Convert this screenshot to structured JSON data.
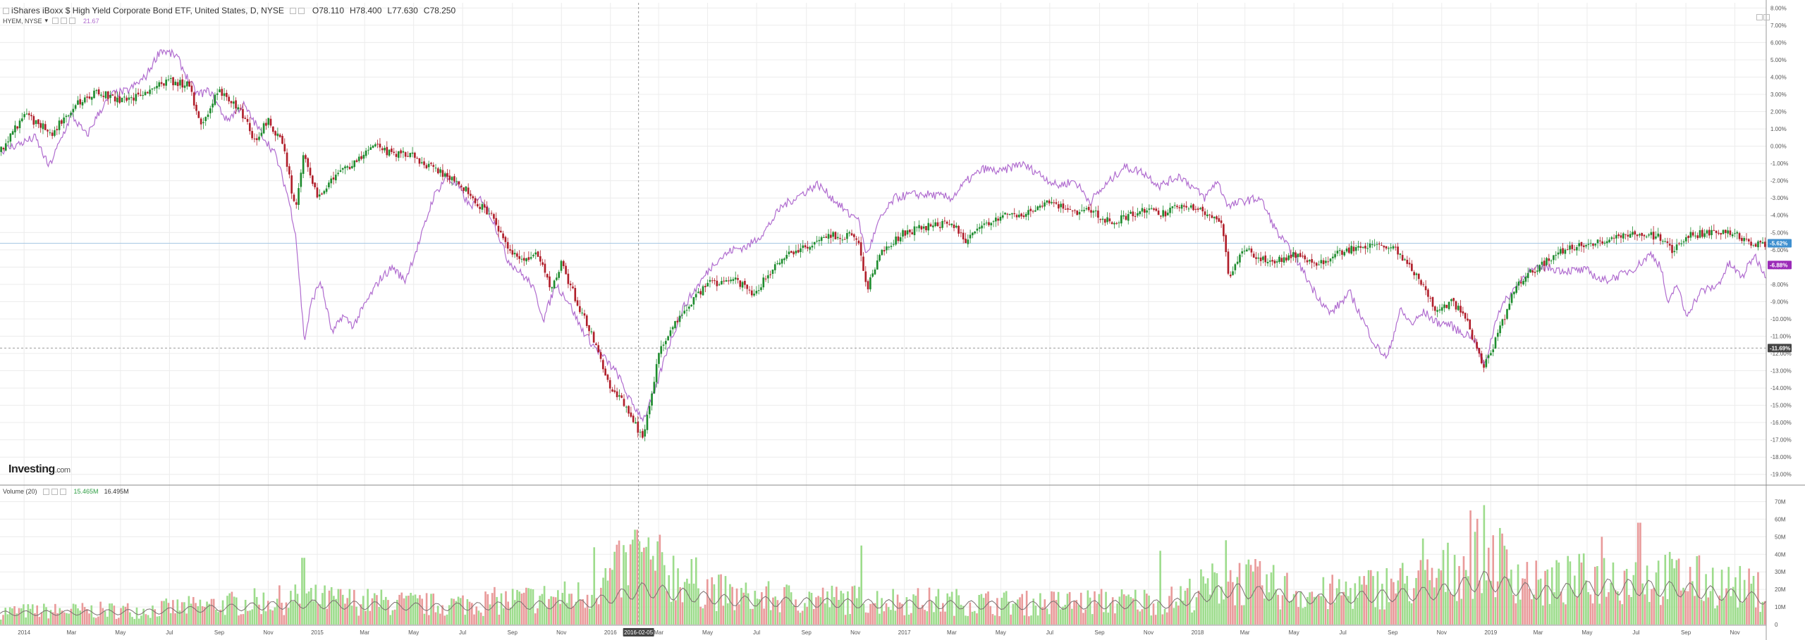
{
  "legend": {
    "title": "iShares iBoxx $ High Yield Corporate Bond ETF, United States, D, NYSE",
    "open": "O78.110",
    "high": "H78.400",
    "low": "L77.630",
    "close": "C78.250",
    "overlay_symbol": "HYEM, NYSE",
    "overlay_arrow": "▾",
    "overlay_value": "21.67",
    "volume_label": "Volume (20)",
    "volume_value": "15.465M",
    "volume_ma_value": "16.495M"
  },
  "logo": {
    "main": "Investing",
    "suffix": ".com"
  },
  "colors": {
    "up": "#1e8c2e",
    "down": "#b01e2a",
    "overlay": "#b06ccf",
    "vol_up": "#9ddc8c",
    "vol_down": "#e99a9a",
    "vol_ma": "#7a6f6f",
    "grid": "#ececec",
    "hline": "#a7c8e4",
    "badge_main": "#3e8fcf",
    "badge_overlay": "#9b2ab8",
    "badge_cursor": "#444444"
  },
  "chart_data": [
    {
      "type": "candlestick",
      "title": "iShares iBoxx $ High Yield Corporate Bond ETF, United States, D, NYSE",
      "y_scale": "percent change",
      "ylim": [
        -19.5,
        8.3
      ],
      "y_ticks": [
        "8.00%",
        "7.00%",
        "6.00%",
        "5.00%",
        "4.00%",
        "3.00%",
        "2.00%",
        "1.00%",
        "0.00%",
        "-1.00%",
        "-2.00%",
        "-3.00%",
        "-4.00%",
        "-5.00%",
        "-6.00%",
        "-7.00%",
        "-8.00%",
        "-9.00%",
        "-10.00%",
        "-11.00%",
        "-12.00%",
        "-13.00%",
        "-14.00%",
        "-15.00%",
        "-16.00%",
        "-17.00%",
        "-18.00%",
        "-19.00%"
      ],
      "x_range": [
        "2013-12-02",
        "2019-12-10"
      ],
      "x_ticks": [
        {
          "date": "2014-01-01",
          "label": "2014"
        },
        {
          "date": "2014-03-01",
          "label": "Mar"
        },
        {
          "date": "2014-05-01",
          "label": "May"
        },
        {
          "date": "2014-07-01",
          "label": "Jul"
        },
        {
          "date": "2014-09-01",
          "label": "Sep"
        },
        {
          "date": "2014-11-01",
          "label": "Nov"
        },
        {
          "date": "2015-01-01",
          "label": "2015"
        },
        {
          "date": "2015-03-01",
          "label": "Mar"
        },
        {
          "date": "2015-05-01",
          "label": "May"
        },
        {
          "date": "2015-07-01",
          "label": "Jul"
        },
        {
          "date": "2015-09-01",
          "label": "Sep"
        },
        {
          "date": "2015-11-01",
          "label": "Nov"
        },
        {
          "date": "2016-01-01",
          "label": "2016"
        },
        {
          "date": "2016-03-01",
          "label": "Mar"
        },
        {
          "date": "2016-05-01",
          "label": "May"
        },
        {
          "date": "2016-07-01",
          "label": "Jul"
        },
        {
          "date": "2016-09-01",
          "label": "Sep"
        },
        {
          "date": "2016-11-01",
          "label": "Nov"
        },
        {
          "date": "2017-01-01",
          "label": "2017"
        },
        {
          "date": "2017-03-01",
          "label": "Mar"
        },
        {
          "date": "2017-05-01",
          "label": "May"
        },
        {
          "date": "2017-07-01",
          "label": "Jul"
        },
        {
          "date": "2017-09-01",
          "label": "Sep"
        },
        {
          "date": "2017-11-01",
          "label": "Nov"
        },
        {
          "date": "2018-01-01",
          "label": "2018"
        },
        {
          "date": "2018-03-01",
          "label": "Mar"
        },
        {
          "date": "2018-05-01",
          "label": "May"
        },
        {
          "date": "2018-07-01",
          "label": "Jul"
        },
        {
          "date": "2018-09-01",
          "label": "Sep"
        },
        {
          "date": "2018-11-01",
          "label": "Nov"
        },
        {
          "date": "2019-01-01",
          "label": "2019"
        },
        {
          "date": "2019-03-01",
          "label": "Mar"
        },
        {
          "date": "2019-05-01",
          "label": "May"
        },
        {
          "date": "2019-07-01",
          "label": "Jul"
        },
        {
          "date": "2019-09-01",
          "label": "Sep"
        },
        {
          "date": "2019-11-01",
          "label": "Nov"
        }
      ],
      "series": [
        {
          "name": "iShares iBoxx $ High Yield Corporate Bond ETF",
          "style": "candles",
          "x": [
            "2013-12-02",
            "2014-01-01",
            "2014-02-05",
            "2014-03-01",
            "2014-04-01",
            "2014-05-01",
            "2014-06-01",
            "2014-07-01",
            "2014-07-25",
            "2014-08-10",
            "2014-09-01",
            "2014-10-01",
            "2014-10-15",
            "2014-11-01",
            "2014-11-20",
            "2014-12-05",
            "2014-12-15",
            "2015-01-01",
            "2015-01-15",
            "2015-02-01",
            "2015-03-01",
            "2015-03-15",
            "2015-04-01",
            "2015-05-01",
            "2015-06-01",
            "2015-07-01",
            "2015-07-20",
            "2015-08-10",
            "2015-08-25",
            "2015-09-15",
            "2015-10-01",
            "2015-10-20",
            "2015-11-01",
            "2015-11-20",
            "2015-12-14",
            "2016-01-01",
            "2016-01-20",
            "2016-02-11",
            "2016-03-01",
            "2016-04-01",
            "2016-05-01",
            "2016-06-01",
            "2016-06-27",
            "2016-07-15",
            "2016-08-01",
            "2016-09-01",
            "2016-10-01",
            "2016-11-03",
            "2016-11-15",
            "2016-12-01",
            "2017-01-01",
            "2017-02-01",
            "2017-03-01",
            "2017-03-20",
            "2017-04-01",
            "2017-05-01",
            "2017-06-01",
            "2017-07-01",
            "2017-08-01",
            "2017-08-20",
            "2017-09-15",
            "2017-11-01",
            "2017-11-15",
            "2017-12-15",
            "2018-01-15",
            "2018-02-01",
            "2018-02-09",
            "2018-03-01",
            "2018-04-01",
            "2018-05-01",
            "2018-06-01",
            "2018-07-01",
            "2018-08-01",
            "2018-09-01",
            "2018-10-01",
            "2018-10-25",
            "2018-11-15",
            "2018-12-01",
            "2018-12-24",
            "2019-01-15",
            "2019-02-01",
            "2019-03-01",
            "2019-04-01",
            "2019-05-01",
            "2019-06-01",
            "2019-07-01",
            "2019-08-01",
            "2019-08-15",
            "2019-09-01",
            "2019-10-01",
            "2019-11-01",
            "2019-11-25",
            "2019-12-10"
          ],
          "values": [
            -0.3,
            1.8,
            0.8,
            2.2,
            3.2,
            2.6,
            3.1,
            3.8,
            3.5,
            1.2,
            3.3,
            1.8,
            0.3,
            1.5,
            0.0,
            -3.8,
            -0.3,
            -3.0,
            -2.1,
            -1.5,
            -0.4,
            0.1,
            -0.4,
            -0.6,
            -1.5,
            -2.3,
            -3.3,
            -4.3,
            -5.8,
            -6.8,
            -6.0,
            -8.3,
            -6.8,
            -9.0,
            -11.5,
            -14.0,
            -15.0,
            -17.0,
            -12.0,
            -9.5,
            -8.0,
            -7.7,
            -8.5,
            -7.5,
            -6.5,
            -5.8,
            -5.2,
            -5.2,
            -8.4,
            -6.3,
            -5.0,
            -4.6,
            -4.5,
            -5.5,
            -4.8,
            -4.0,
            -3.9,
            -3.2,
            -3.9,
            -3.7,
            -4.4,
            -3.6,
            -4.0,
            -3.4,
            -3.9,
            -4.7,
            -7.5,
            -6.0,
            -6.8,
            -6.3,
            -6.8,
            -6.1,
            -5.7,
            -5.8,
            -7.5,
            -9.5,
            -9.0,
            -10.0,
            -12.8,
            -10.3,
            -8.0,
            -7.0,
            -6.0,
            -5.6,
            -5.4,
            -5.0,
            -5.3,
            -6.0,
            -5.2,
            -5.0,
            -5.0,
            -5.8,
            -5.6
          ]
        },
        {
          "name": "HYEM, NYSE",
          "style": "line",
          "x": [
            "2013-12-02",
            "2014-01-15",
            "2014-02-01",
            "2014-02-15",
            "2014-03-01",
            "2014-03-20",
            "2014-04-05",
            "2014-04-20",
            "2014-05-10",
            "2014-06-01",
            "2014-06-20",
            "2014-07-10",
            "2014-07-25",
            "2014-08-05",
            "2014-08-20",
            "2014-09-10",
            "2014-10-01",
            "2014-10-20",
            "2014-11-10",
            "2014-11-25",
            "2014-12-05",
            "2014-12-16",
            "2014-12-25",
            "2015-01-05",
            "2015-01-20",
            "2015-02-01",
            "2015-02-15",
            "2015-03-01",
            "2015-03-20",
            "2015-04-05",
            "2015-04-20",
            "2015-05-10",
            "2015-05-25",
            "2015-06-10",
            "2015-06-25",
            "2015-07-10",
            "2015-07-25",
            "2015-08-10",
            "2015-08-25",
            "2015-09-10",
            "2015-09-25",
            "2015-10-10",
            "2015-10-25",
            "2015-11-10",
            "2015-11-25",
            "2015-12-10",
            "2015-12-25",
            "2016-01-10",
            "2016-01-25",
            "2016-02-11",
            "2016-02-25",
            "2016-03-10",
            "2016-04-01",
            "2016-04-20",
            "2016-05-10",
            "2016-06-01",
            "2016-06-20",
            "2016-07-10",
            "2016-08-01",
            "2016-08-25",
            "2016-09-15",
            "2016-10-10",
            "2016-10-25",
            "2016-11-03",
            "2016-11-15",
            "2016-12-01",
            "2016-12-20",
            "2017-01-10",
            "2017-02-01",
            "2017-03-01",
            "2017-03-20",
            "2017-04-10",
            "2017-05-01",
            "2017-05-25",
            "2017-06-15",
            "2017-07-10",
            "2017-08-01",
            "2017-08-20",
            "2017-09-10",
            "2017-10-01",
            "2017-10-25",
            "2017-11-15",
            "2017-12-10",
            "2018-01-10",
            "2018-01-25",
            "2018-02-09",
            "2018-02-25",
            "2018-03-20",
            "2018-04-10",
            "2018-05-01",
            "2018-05-25",
            "2018-06-15",
            "2018-07-10",
            "2018-07-25",
            "2018-08-10",
            "2018-08-25",
            "2018-09-10",
            "2018-09-25",
            "2018-10-10",
            "2018-10-25",
            "2018-11-10",
            "2018-11-25",
            "2018-12-10",
            "2018-12-24",
            "2019-01-10",
            "2019-01-25",
            "2019-02-15",
            "2019-03-10",
            "2019-04-01",
            "2019-05-01",
            "2019-05-20",
            "2019-06-10",
            "2019-07-01",
            "2019-07-20",
            "2019-08-01",
            "2019-08-10",
            "2019-08-20",
            "2019-09-01",
            "2019-09-20",
            "2019-10-10",
            "2019-10-25",
            "2019-11-10",
            "2019-11-25",
            "2019-12-10"
          ],
          "values": [
            -0.3,
            0.5,
            -1.2,
            0.3,
            1.8,
            0.6,
            2.0,
            3.0,
            3.2,
            4.0,
            5.6,
            5.2,
            3.8,
            3.0,
            3.2,
            1.5,
            2.4,
            1.0,
            -0.5,
            -2.8,
            -5.0,
            -11.3,
            -9.0,
            -7.8,
            -10.9,
            -9.8,
            -10.4,
            -9.2,
            -7.7,
            -7.0,
            -7.8,
            -5.3,
            -3.0,
            -1.8,
            -2.3,
            -3.5,
            -3.0,
            -4.5,
            -6.5,
            -7.3,
            -8.0,
            -10.0,
            -8.0,
            -9.0,
            -10.5,
            -11.5,
            -12.3,
            -13.2,
            -14.7,
            -15.8,
            -14.3,
            -12.0,
            -9.3,
            -8.0,
            -6.7,
            -6.0,
            -5.8,
            -5.0,
            -3.5,
            -2.8,
            -2.2,
            -3.3,
            -4.0,
            -4.0,
            -6.3,
            -4.3,
            -3.0,
            -2.8,
            -2.8,
            -3.0,
            -2.0,
            -1.3,
            -1.5,
            -1.0,
            -1.5,
            -2.3,
            -2.0,
            -3.2,
            -2.2,
            -1.2,
            -1.5,
            -2.3,
            -1.7,
            -3.0,
            -2.0,
            -3.5,
            -3.2,
            -3.0,
            -5.0,
            -6.3,
            -8.3,
            -9.7,
            -8.5,
            -10.0,
            -11.5,
            -12.3,
            -9.5,
            -10.3,
            -9.6,
            -10.2,
            -10.3,
            -10.8,
            -11.0,
            -12.8,
            -9.6,
            -8.6,
            -7.3,
            -7.0,
            -7.2,
            -7.2,
            -7.8,
            -7.5,
            -7.0,
            -6.2,
            -7.0,
            -9.3,
            -7.9,
            -9.8,
            -8.4,
            -8.1,
            -6.8,
            -7.6,
            -6.3,
            -7.5
          ]
        }
      ],
      "price_markers": [
        {
          "label": "-5.62%",
          "value": -5.62,
          "color": "#3e8fcf"
        },
        {
          "label": "-6.88%",
          "value": -6.88,
          "color": "#9b2ab8"
        },
        {
          "label": "-11.69%",
          "value": -11.69,
          "color": "#444444"
        }
      ],
      "cursor_date_label": "2016-02-05",
      "cursor_date": "2016-02-05",
      "grid": true
    },
    {
      "type": "bar",
      "title": "Volume (20)",
      "ylim": [
        0,
        75
      ],
      "y_unit": "M",
      "y_ticks": [
        "0",
        "10M",
        "20M",
        "30M",
        "40M",
        "50M",
        "60M",
        "70M"
      ],
      "series": [
        {
          "name": "Volume",
          "style": "bars"
        },
        {
          "name": "Volume MA (20)",
          "style": "line",
          "x": [
            "2013-12-02",
            "2014-06-01",
            "2014-12-15",
            "2015-06-01",
            "2015-12-01",
            "2016-02-11",
            "2016-06-01",
            "2016-12-01",
            "2017-06-01",
            "2017-12-01",
            "2018-02-09",
            "2018-06-01",
            "2018-10-25",
            "2018-12-24",
            "2019-03-01",
            "2019-06-01",
            "2019-09-01",
            "2019-12-10"
          ],
          "values": [
            7,
            8,
            13,
            11,
            13,
            22,
            15,
            13,
            12,
            13,
            22,
            16,
            20,
            28,
            20,
            24,
            22,
            16
          ]
        }
      ],
      "volume_profile": {
        "x": [
          "2013-12-02",
          "2014-06-01",
          "2014-12-15",
          "2015-06-01",
          "2015-12-01",
          "2016-02-05",
          "2016-06-01",
          "2016-12-01",
          "2017-06-01",
          "2017-12-01",
          "2018-02-09",
          "2018-06-01",
          "2018-10-25",
          "2018-12-24",
          "2019-03-01",
          "2019-06-01",
          "2019-09-01",
          "2019-12-10"
        ],
        "values": [
          8,
          9,
          16,
          12,
          18,
          40,
          17,
          15,
          13,
          15,
          28,
          18,
          28,
          45,
          24,
          30,
          28,
          20
        ]
      },
      "spikes": [
        {
          "x": "2016-02-02",
          "value": 54
        },
        {
          "x": "2018-12-24",
          "value": 68
        },
        {
          "x": "2018-12-07",
          "value": 65
        },
        {
          "x": "2018-10-10",
          "value": 49
        },
        {
          "x": "2019-07-05",
          "value": 58
        },
        {
          "x": "2019-05-20",
          "value": 50
        },
        {
          "x": "2018-02-06",
          "value": 48
        },
        {
          "x": "2016-11-09",
          "value": 45
        },
        {
          "x": "2017-11-15",
          "value": 42
        },
        {
          "x": "2015-12-11",
          "value": 44
        },
        {
          "x": "2014-12-15",
          "value": 38
        }
      ]
    }
  ]
}
